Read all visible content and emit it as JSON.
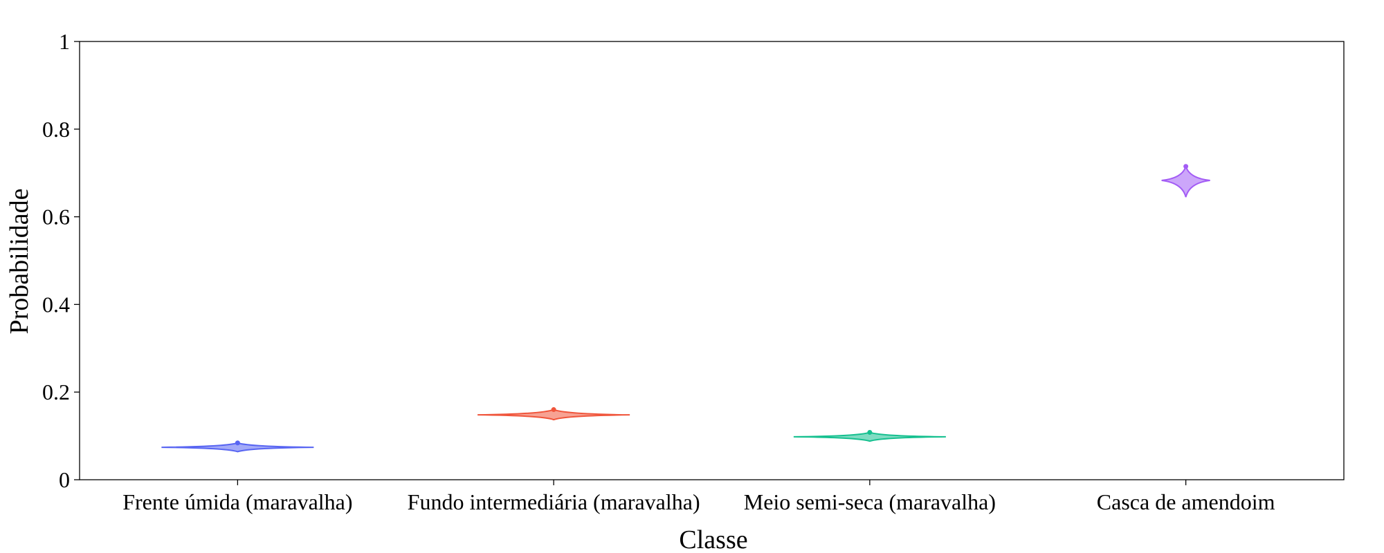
{
  "chart_data": {
    "type": "violin",
    "xlabel": "Classe",
    "ylabel": "Probabilidade",
    "ylim": [
      0,
      1
    ],
    "yticks": [
      {
        "value": 0,
        "label": "0"
      },
      {
        "value": 0.2,
        "label": "0.2"
      },
      {
        "value": 0.4,
        "label": "0.4"
      },
      {
        "value": 0.6,
        "label": "0.6"
      },
      {
        "value": 0.8,
        "label": "0.8"
      },
      {
        "value": 1,
        "label": "1"
      }
    ],
    "grid": false,
    "legend": "none",
    "categories": [
      "Frente úmida (maravalha)",
      "Fundo intermediária (maravalha)",
      "Meio semi-seca (maravalha)",
      "Casca de amendoim"
    ],
    "series": [
      {
        "category": "Frente úmida (maravalha)",
        "min": 0.064,
        "center": 0.074,
        "max": 0.084,
        "color": "#5865f2"
      },
      {
        "category": "Fundo intermediária (maravalha)",
        "min": 0.137,
        "center": 0.148,
        "max": 0.16,
        "color": "#f0553b"
      },
      {
        "category": "Meio semi-seca (maravalha)",
        "min": 0.088,
        "center": 0.098,
        "max": 0.108,
        "color": "#15c08f"
      },
      {
        "category": "Casca de amendoim",
        "min": 0.645,
        "center": 0.683,
        "max": 0.715,
        "color": "#a35cf5"
      }
    ]
  }
}
